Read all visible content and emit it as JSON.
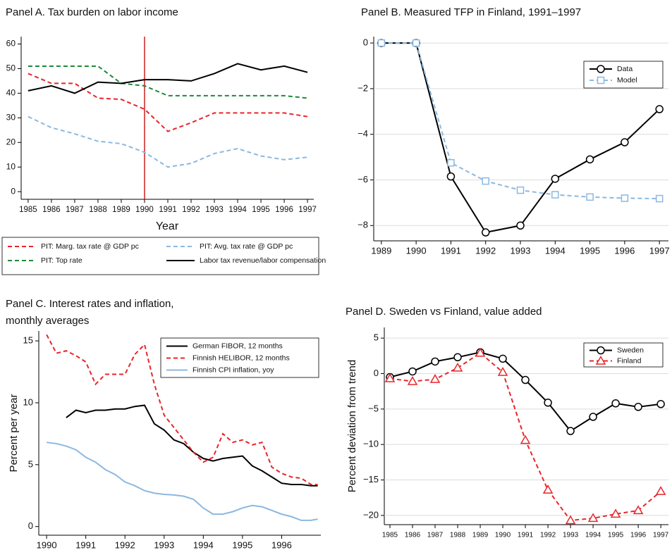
{
  "chart_data": [
    {
      "type": "line",
      "title": [
        "Panel A. Tax burden on labor income"
      ],
      "xlabel": "Year",
      "x": [
        1985,
        1986,
        1987,
        1988,
        1989,
        1990,
        1991,
        1992,
        1993,
        1994,
        1995,
        1996,
        1997
      ],
      "series": [
        {
          "name": "PIT: Marg. tax rate @ GDP pc",
          "color": "#e8262a",
          "style": "dashed",
          "values": [
            48,
            44,
            44,
            38,
            37.5,
            33.5,
            24.5,
            28,
            32,
            32,
            32,
            32,
            30.5
          ]
        },
        {
          "name": "PIT: Avg. tax rate @ GDP pc",
          "color": "#8cb8e0",
          "style": "dashed",
          "values": [
            30.5,
            26,
            23.5,
            20.5,
            19.5,
            16,
            10,
            11.5,
            15.5,
            17.5,
            14.5,
            13,
            14
          ]
        },
        {
          "name": "PIT: Top rate",
          "color": "#1a8a3a",
          "style": "dashed",
          "values": [
            51,
            51,
            51,
            51,
            44,
            43,
            39,
            39,
            39,
            39,
            39,
            39,
            38
          ]
        },
        {
          "name": "Labor tax revenue/labor compensation",
          "color": "#000000",
          "style": "solid",
          "values": [
            41,
            43,
            40,
            44.5,
            44,
            45.5,
            45.5,
            45,
            48,
            52,
            49.5,
            51,
            48.5
          ]
        }
      ],
      "vline": 1990,
      "vline_color": "#cc1f1f",
      "xlim": [
        1984.7,
        1997.27
      ],
      "xticks": [
        1985,
        1986,
        1987,
        1988,
        1989,
        1990,
        1991,
        1992,
        1993,
        1994,
        1995,
        1996,
        1997
      ],
      "ylim": [
        -3.1,
        63
      ],
      "yticks": [
        0,
        10,
        20,
        30,
        40,
        50,
        60
      ],
      "grid": false,
      "legend": "below"
    },
    {
      "type": "line",
      "title": [
        "Panel B. Measured TFP in Finland, 1991–1997"
      ],
      "x": [
        1989,
        1990,
        1991,
        1992,
        1993,
        1994,
        1995,
        1996,
        1997
      ],
      "series": [
        {
          "name": "Data",
          "color": "#000000",
          "style": "solid",
          "marker": "circle",
          "values": [
            0,
            0,
            -5.85,
            -8.3,
            -8.0,
            -5.95,
            -5.1,
            -4.35,
            -2.9
          ]
        },
        {
          "name": "Model",
          "color": "#8cb8e0",
          "style": "dashed",
          "marker": "square",
          "values": [
            0,
            0,
            -5.25,
            -6.05,
            -6.45,
            -6.65,
            -6.75,
            -6.8,
            -6.82
          ]
        }
      ],
      "xlim": [
        1988.78,
        1997.26
      ],
      "xticks": [
        1989,
        1990,
        1991,
        1992,
        1993,
        1994,
        1995,
        1996,
        1997
      ],
      "ylim": [
        -8.67,
        0.28
      ],
      "yticks": [
        0,
        {
          "value": -2,
          "label": "−2"
        },
        {
          "value": -4,
          "label": "−4"
        },
        {
          "value": -6,
          "label": "−6"
        },
        {
          "value": -8,
          "label": "−8"
        }
      ],
      "grid": true,
      "legend": "top right"
    },
    {
      "type": "line",
      "title": [
        "Panel C. Interest rates and inflation,",
        "monthly averages"
      ],
      "ylabel": "Percent per year",
      "x": [
        1990,
        1990.25,
        1990.5,
        1990.75,
        1991,
        1991.25,
        1991.5,
        1991.75,
        1992,
        1992.25,
        1992.5,
        1992.75,
        1993,
        1993.25,
        1993.5,
        1993.75,
        1994,
        1994.25,
        1994.5,
        1994.75,
        1995,
        1995.25,
        1995.5,
        1995.75,
        1996,
        1996.25,
        1996.5,
        1996.75,
        1996.92
      ],
      "series": [
        {
          "name": "German FIBOR, 12 months",
          "color": "#000000",
          "style": "solid",
          "values": [
            null,
            null,
            8.8,
            9.4,
            9.2,
            9.4,
            9.4,
            9.5,
            9.5,
            9.7,
            9.8,
            8.3,
            7.8,
            7,
            6.7,
            6,
            5.5,
            5.3,
            5.5,
            5.6,
            5.7,
            4.9,
            4.5,
            4.0,
            3.5,
            3.4,
            3.4,
            3.3,
            3.3
          ]
        },
        {
          "name": "Finnish HELIBOR, 12 months",
          "color": "#e8262a",
          "style": "dashed",
          "values": [
            15.5,
            14,
            14.2,
            13.8,
            13.3,
            11.5,
            12.3,
            12.3,
            12.3,
            13.9,
            14.7,
            11.5,
            9,
            8,
            7,
            6,
            5.2,
            5.6,
            7.5,
            6.8,
            7,
            6.6,
            6.8,
            4.8,
            4.3,
            4.0,
            3.9,
            3.4,
            3.4
          ]
        },
        {
          "name": "Finnish CPI inflation, yoy",
          "color": "#8cb8e0",
          "style": "solid",
          "values": [
            6.8,
            6.7,
            6.5,
            6.2,
            5.6,
            5.2,
            4.6,
            4.2,
            3.6,
            3.3,
            2.9,
            2.7,
            2.6,
            2.55,
            2.45,
            2.2,
            1.5,
            1.0,
            1.0,
            1.2,
            1.5,
            1.7,
            1.6,
            1.3,
            1.0,
            0.8,
            0.5,
            0.5,
            0.6
          ]
        }
      ],
      "xlim": [
        1989.8,
        1997.0
      ],
      "xticks": [
        1990,
        1991,
        1992,
        1993,
        1994,
        1995,
        1996
      ],
      "ylim": [
        -0.7,
        15.8
      ],
      "yticks": [
        0,
        5,
        10,
        15
      ],
      "grid": false,
      "legend": "top right"
    },
    {
      "type": "line",
      "title": [
        "Panel D. Sweden vs Finland, value added"
      ],
      "ylabel": "Percent deviation from trend",
      "x": [
        1985,
        1986,
        1987,
        1988,
        1989,
        1990,
        1991,
        1992,
        1993,
        1994,
        1995,
        1996,
        1997
      ],
      "series": [
        {
          "name": "Sweden",
          "color": "#000000",
          "style": "solid",
          "marker": "circle",
          "values": [
            -0.5,
            0.3,
            1.7,
            2.3,
            3.0,
            2.1,
            -0.9,
            -4.1,
            -8.1,
            -6.1,
            -4.2,
            -4.7,
            -4.3
          ]
        },
        {
          "name": "Finland",
          "color": "#e8262a",
          "style": "dashed",
          "marker": "triangle",
          "values": [
            -0.7,
            -1.1,
            -0.8,
            0.8,
            2.9,
            0.2,
            -9.4,
            -16.4,
            -20.7,
            -20.4,
            -19.8,
            -19.3,
            -16.6
          ]
        }
      ],
      "xlim": [
        1984.75,
        1997.34
      ],
      "xticks": [
        1985,
        1986,
        1987,
        1988,
        1989,
        1990,
        1991,
        1992,
        1993,
        1994,
        1995,
        1996,
        1997
      ],
      "ylim": [
        -21.3,
        6.5
      ],
      "yticks": [
        5,
        0,
        {
          "value": -5,
          "label": "−5"
        },
        {
          "value": -10,
          "label": "−10"
        },
        {
          "value": -15,
          "label": "−15"
        },
        {
          "value": -20,
          "label": "−20"
        }
      ],
      "grid": true,
      "legend": "top right"
    }
  ]
}
